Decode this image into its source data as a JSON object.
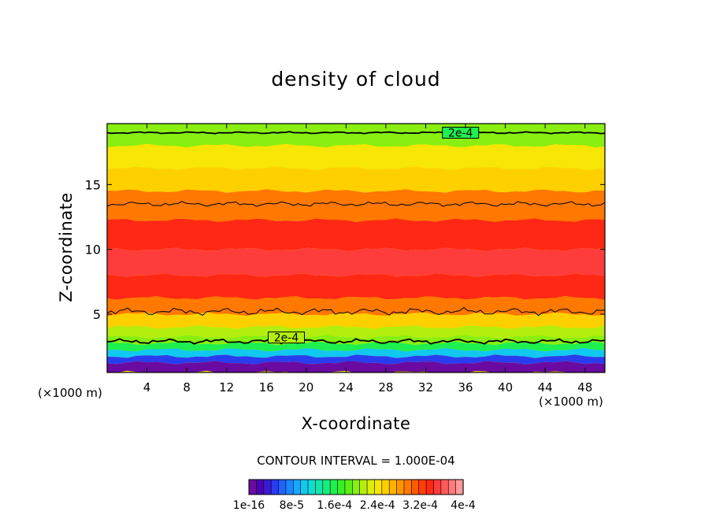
{
  "chart_data": {
    "type": "heatmap",
    "title": "density of cloud",
    "xlabel": "X-coordinate",
    "ylabel": "Z-coordinate",
    "x_unit_label": "(×1000 m)",
    "xlim": [
      0,
      50
    ],
    "ylim": [
      0.5,
      19.7
    ],
    "x_ticks": [
      4,
      8,
      12,
      16,
      20,
      24,
      28,
      32,
      36,
      40,
      44,
      48
    ],
    "y_ticks": [
      5,
      10,
      15
    ],
    "contour_interval_label": "CONTOUR INTERVAL = 1.000E-04",
    "contour_line_label": "2e-4",
    "colorbar": {
      "tick_labels": [
        "1e-16",
        "8e-5",
        "1.6e-4",
        "2.4e-4",
        "3.2e-4",
        "4e-4"
      ],
      "colors": [
        "#6a0aa0",
        "#4b00b4",
        "#3a1ad6",
        "#2a3cf0",
        "#1f62ff",
        "#1a86ff",
        "#16a9ff",
        "#11c8f0",
        "#12dcd2",
        "#14e6a8",
        "#18ec7c",
        "#1ef050",
        "#34f028",
        "#5cf014",
        "#88ef10",
        "#b4ee0e",
        "#dcee0a",
        "#f8e606",
        "#ffd000",
        "#ffb400",
        "#ff9600",
        "#ff7800",
        "#ff5a00",
        "#ff3c0a",
        "#ff2814",
        "#ff3c3c",
        "#ff5a5a",
        "#ff7a7a",
        "#ff9a9a"
      ]
    },
    "vertical_profile": [
      {
        "z": 19.0,
        "value": 0.0002
      },
      {
        "z": 17.0,
        "value": 0.00024
      },
      {
        "z": 15.5,
        "value": 0.00026
      },
      {
        "z": 13.5,
        "value": 0.0003
      },
      {
        "z": 11.0,
        "value": 0.00034
      },
      {
        "z": 9.0,
        "value": 0.00036
      },
      {
        "z": 7.0,
        "value": 0.00034
      },
      {
        "z": 5.5,
        "value": 0.0003
      },
      {
        "z": 4.5,
        "value": 0.00026
      },
      {
        "z": 3.5,
        "value": 0.00022
      },
      {
        "z": 3.0,
        "value": 0.0002
      },
      {
        "z": 2.5,
        "value": 0.00016
      },
      {
        "z": 2.0,
        "value": 0.0001
      },
      {
        "z": 1.5,
        "value": 4e-05
      },
      {
        "z": 1.0,
        "value": 0.0
      }
    ]
  }
}
